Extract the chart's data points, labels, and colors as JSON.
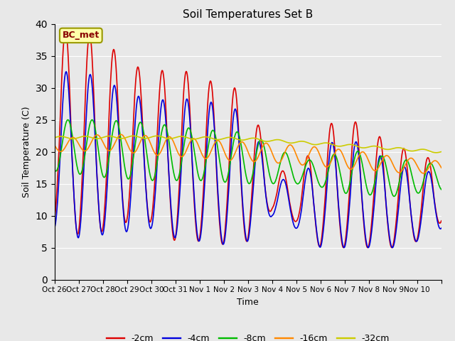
{
  "title": "Soil Temperatures Set B",
  "xlabel": "Time",
  "ylabel": "Soil Temperature (C)",
  "ylim": [
    0,
    40
  ],
  "yticks": [
    0,
    5,
    10,
    15,
    20,
    25,
    30,
    35,
    40
  ],
  "annotation": "BC_met",
  "bg_color": "#e8e8e8",
  "fig_facecolor": "#e8e8e8",
  "legend_labels": [
    "-2cm",
    "-4cm",
    "-8cm",
    "-16cm",
    "-32cm"
  ],
  "legend_colors": [
    "#dd0000",
    "#0000dd",
    "#00bb00",
    "#ff8800",
    "#cccc00"
  ],
  "line_width": 1.2,
  "num_days": 16,
  "x_tick_labels": [
    "Oct 26",
    "Oct 27",
    "Oct 28",
    "Oct 29",
    "Oct 30",
    "Oct 31",
    "Nov 1",
    "Nov 2",
    "Nov 3",
    "Nov 4",
    "Nov 5",
    "Nov 6",
    "Nov 7",
    "Nov 8",
    "Nov 9",
    "Nov 10"
  ]
}
